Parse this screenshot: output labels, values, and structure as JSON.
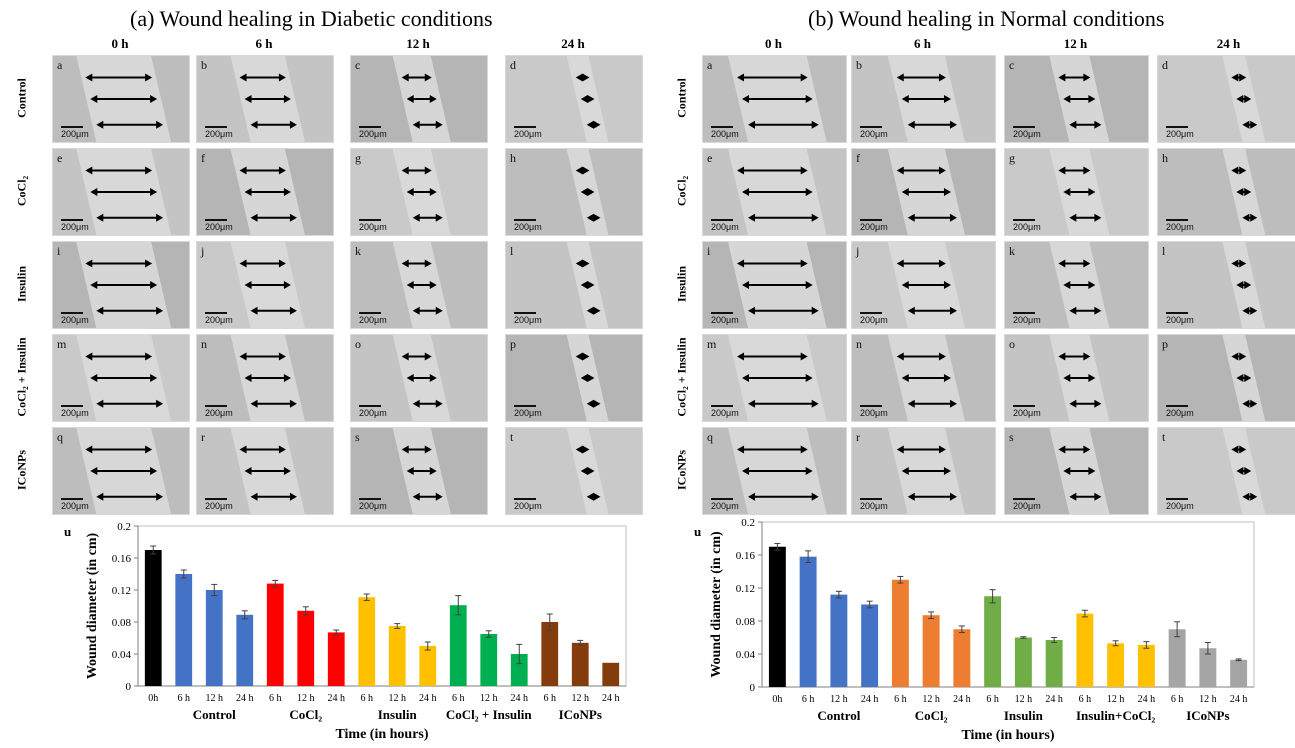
{
  "panels": [
    {
      "id": "diabetic",
      "title": "(a) Wound healing in Diabetic conditions",
      "time_headers": [
        "0 h",
        "6 h",
        "12 h",
        "24 h"
      ],
      "row_labels": [
        "Control",
        "CoCl₂",
        "Insulin",
        "CoCl₂ + Insulin",
        "ICoNPs"
      ],
      "tile_letters": [
        "a",
        "b",
        "c",
        "d",
        "e",
        "f",
        "g",
        "h",
        "i",
        "j",
        "k",
        "l",
        "m",
        "n",
        "o",
        "p",
        "q",
        "r",
        "s",
        "t"
      ],
      "scale_label": "200μm",
      "chart_letter": "u"
    },
    {
      "id": "normal",
      "title": "(b) Wound healing in Normal conditions",
      "time_headers": [
        "0 h",
        "6 h",
        "12 h",
        "24 h"
      ],
      "row_labels": [
        "Control",
        "CoCl₂",
        "Insulin",
        "CoCl₂ + Insulin",
        "ICoNPs"
      ],
      "tile_letters": [
        "a",
        "b",
        "c",
        "d",
        "e",
        "f",
        "g",
        "h",
        "i",
        "j",
        "k",
        "l",
        "m",
        "n",
        "o",
        "p",
        "q",
        "r",
        "s",
        "t"
      ],
      "scale_label": "200μm",
      "chart_letter": "u"
    }
  ],
  "chart_data": [
    {
      "type": "bar",
      "xlabel": "Time (in hours)",
      "ylabel": "Wound diameter (in cm)",
      "ylim": [
        0,
        0.2
      ],
      "yticks": [
        0,
        0.04,
        0.08,
        0.12,
        0.16,
        0.2
      ],
      "ytick_labels": [
        "0",
        "0.04",
        "0.08",
        "0.12",
        "0.16",
        "0.2"
      ],
      "categories": [
        "0h",
        "6 h",
        "12 h",
        "24 h",
        "6 h",
        "12 h",
        "24 h",
        "6 h",
        "12 h",
        "24 h",
        "6 h",
        "12 h",
        "24 h",
        "6 h",
        "12 h",
        "24 h"
      ],
      "values": [
        0.17,
        0.14,
        0.12,
        0.089,
        0.128,
        0.094,
        0.067,
        0.111,
        0.075,
        0.05,
        0.101,
        0.065,
        0.04,
        0.08,
        0.054,
        0.029
      ],
      "errors": [
        0.005,
        0.005,
        0.007,
        0.005,
        0.004,
        0.005,
        0.003,
        0.004,
        0.003,
        0.005,
        0.012,
        0.004,
        0.012,
        0.01,
        0.003,
        0.0
      ],
      "colors": [
        "#000000",
        "#4472c4",
        "#4472c4",
        "#4472c4",
        "#ff0000",
        "#ff0000",
        "#ff0000",
        "#ffc000",
        "#ffc000",
        "#ffc000",
        "#00b050",
        "#00b050",
        "#00b050",
        "#843c0c",
        "#843c0c",
        "#843c0c"
      ],
      "groups": [
        {
          "label": "Control",
          "span": [
            0,
            3
          ]
        },
        {
          "label": "CoCl₂",
          "span": [
            4,
            6
          ]
        },
        {
          "label": "Insulin",
          "span": [
            7,
            9
          ]
        },
        {
          "label": "CoCl₂ + Insulin",
          "span": [
            10,
            12
          ]
        },
        {
          "label": "ICoNPs",
          "span": [
            13,
            15
          ]
        }
      ],
      "grid": false
    },
    {
      "type": "bar",
      "xlabel": "Time (in hours)",
      "ylabel": "Wound diameter (in cm)",
      "ylim": [
        0,
        0.2
      ],
      "yticks": [
        0,
        0.04,
        0.08,
        0.12,
        0.16,
        0.2
      ],
      "ytick_labels": [
        "0",
        "0.04",
        "0.08",
        "0.12",
        "0.16",
        "0.2"
      ],
      "categories": [
        "0h",
        "6 h",
        "12 h",
        "24 h",
        "6 h",
        "12 h",
        "24 h",
        "6 h",
        "12 h",
        "24 h",
        "6 h",
        "12 h",
        "24 h",
        "6 h",
        "12 h",
        "24 h"
      ],
      "values": [
        0.17,
        0.158,
        0.112,
        0.1,
        0.13,
        0.087,
        0.07,
        0.11,
        0.06,
        0.057,
        0.089,
        0.053,
        0.051,
        0.07,
        0.047,
        0.033
      ],
      "errors": [
        0.004,
        0.007,
        0.004,
        0.004,
        0.004,
        0.004,
        0.004,
        0.008,
        0.001,
        0.003,
        0.004,
        0.003,
        0.004,
        0.009,
        0.007,
        0.001
      ],
      "colors": [
        "#000000",
        "#4472c4",
        "#4472c4",
        "#4472c4",
        "#ed7d31",
        "#ed7d31",
        "#ed7d31",
        "#70ad47",
        "#70ad47",
        "#70ad47",
        "#ffc000",
        "#ffc000",
        "#ffc000",
        "#a5a5a5",
        "#a5a5a5",
        "#a5a5a5"
      ],
      "groups": [
        {
          "label": "Control",
          "span": [
            0,
            3
          ]
        },
        {
          "label": "CoCl₂",
          "span": [
            4,
            6
          ]
        },
        {
          "label": "Insulin",
          "span": [
            7,
            9
          ]
        },
        {
          "label": "Insulin+CoCl₂",
          "span": [
            10,
            12
          ]
        },
        {
          "label": "ICoNPs",
          "span": [
            13,
            15
          ]
        }
      ],
      "grid": false
    }
  ]
}
